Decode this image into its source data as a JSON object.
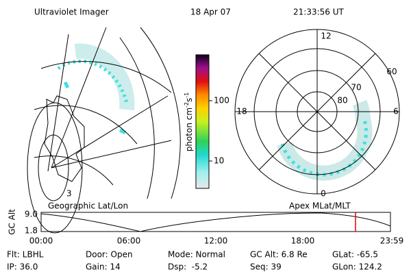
{
  "header": {
    "title": "Ultraviolet Imager",
    "date": "18 Apr 07",
    "time": "21:33:56 UT"
  },
  "colorbar": {
    "ticks": [
      "100",
      "10"
    ],
    "unit": [
      "photon cm",
      "-2",
      "s",
      "-1"
    ]
  },
  "map": {
    "label": "3"
  },
  "polar": {
    "mlt": [
      "12",
      "18",
      "6",
      "0"
    ],
    "mlat": [
      "60",
      "70",
      "80"
    ]
  },
  "timeline": {
    "left_title": "Geographic Lat/Lon",
    "right_title": "Apex MLat/MLT",
    "axis_label": "GC Alt",
    "top": "9.0",
    "bottom": "1.8",
    "times": [
      "00:00",
      "06:00",
      "12:00",
      "18:00",
      "23:59"
    ]
  },
  "footer": {
    "rows": [
      [
        "Flt: LBHL",
        "Door: Open",
        "Mode: Normal",
        "GC Alt: 6.8 Re",
        "GLat: -65.5"
      ],
      [
        "IP: 36.0",
        "Gain: 14",
        "Dsp:  -5.2",
        "Seq: 39",
        "GLon: 124.2"
      ]
    ]
  }
}
